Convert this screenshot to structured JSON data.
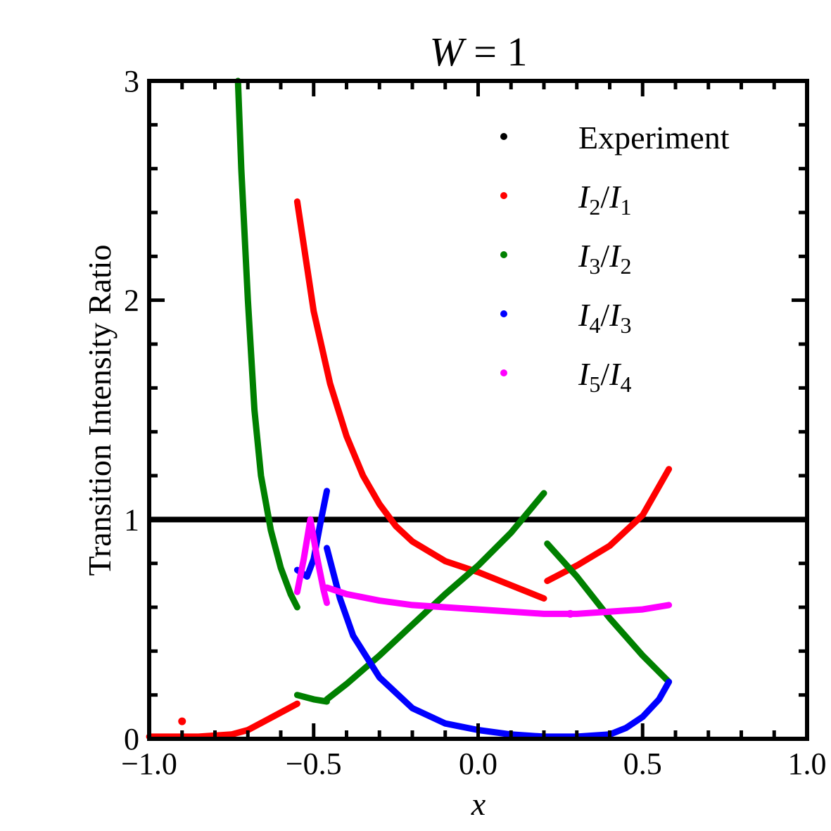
{
  "chart_data": {
    "type": "scatter",
    "title": "W = 1",
    "title_parts": {
      "symbol": "W",
      "rest": " = 1"
    },
    "xlabel": "x",
    "ylabel": "Transition Intensity Ratio",
    "xlim": [
      -1.0,
      1.0
    ],
    "ylim": [
      0,
      3
    ],
    "xticks": [
      -1.0,
      -0.5,
      0.0,
      0.5,
      1.0
    ],
    "xtick_labels": [
      "−1.0",
      "−0.5",
      "0.0",
      "0.5",
      "1.0"
    ],
    "yticks": [
      0,
      1,
      2,
      3
    ],
    "ytick_labels": [
      "0",
      "1",
      "2",
      "3"
    ],
    "grid": false,
    "legend_position": "top-right",
    "reference_line": {
      "y": 1.0,
      "color": "#000000"
    },
    "series": [
      {
        "name": "Experiment",
        "legend": {
          "main": "Experiment"
        },
        "color": "#000000",
        "segments": []
      },
      {
        "name": "I2/I1",
        "legend": {
          "a": "I",
          "a_sub": "2",
          "b": "I",
          "b_sub": "1"
        },
        "color": "#ff0000",
        "isolated_points": [
          [
            -0.9,
            0.08
          ]
        ],
        "segments": [
          [
            [
              -1.0,
              0.01
            ],
            [
              -0.85,
              0.01
            ],
            [
              -0.75,
              0.02
            ],
            [
              -0.7,
              0.04
            ],
            [
              -0.65,
              0.08
            ],
            [
              -0.6,
              0.12
            ],
            [
              -0.55,
              0.16
            ]
          ],
          [
            [
              -0.55,
              2.45
            ],
            [
              -0.5,
              1.95
            ],
            [
              -0.45,
              1.62
            ],
            [
              -0.4,
              1.38
            ],
            [
              -0.35,
              1.2
            ],
            [
              -0.3,
              1.07
            ],
            [
              -0.25,
              0.97
            ],
            [
              -0.2,
              0.9
            ],
            [
              -0.1,
              0.81
            ],
            [
              0.0,
              0.76
            ],
            [
              0.1,
              0.7
            ],
            [
              0.2,
              0.64
            ]
          ],
          [
            [
              0.21,
              0.72
            ],
            [
              0.3,
              0.79
            ],
            [
              0.4,
              0.88
            ],
            [
              0.5,
              1.02
            ],
            [
              0.58,
              1.23
            ]
          ]
        ]
      },
      {
        "name": "I3/I2",
        "legend": {
          "a": "I",
          "a_sub": "3",
          "b": "I",
          "b_sub": "2"
        },
        "color": "#008000",
        "segments": [
          [
            [
              -0.73,
              3.0
            ],
            [
              -0.72,
              2.6
            ],
            [
              -0.7,
              2.0
            ],
            [
              -0.68,
              1.5
            ],
            [
              -0.66,
              1.2
            ],
            [
              -0.63,
              0.95
            ],
            [
              -0.6,
              0.78
            ],
            [
              -0.57,
              0.66
            ],
            [
              -0.55,
              0.6
            ]
          ],
          [
            [
              -0.55,
              0.2
            ],
            [
              -0.5,
              0.18
            ],
            [
              -0.46,
              0.17
            ]
          ],
          [
            [
              -0.46,
              0.18
            ],
            [
              -0.4,
              0.25
            ],
            [
              -0.3,
              0.38
            ],
            [
              -0.2,
              0.52
            ],
            [
              -0.1,
              0.66
            ],
            [
              0.0,
              0.79
            ],
            [
              0.1,
              0.94
            ],
            [
              0.2,
              1.12
            ]
          ],
          [
            [
              0.21,
              0.89
            ],
            [
              0.3,
              0.74
            ],
            [
              0.4,
              0.55
            ],
            [
              0.5,
              0.38
            ],
            [
              0.58,
              0.26
            ]
          ]
        ]
      },
      {
        "name": "I4/I3",
        "legend": {
          "a": "I",
          "a_sub": "4",
          "b": "I",
          "b_sub": "3"
        },
        "color": "#0000ff",
        "segments": [
          [
            [
              -0.55,
              0.77
            ],
            [
              -0.52,
              0.74
            ],
            [
              -0.5,
              0.82
            ],
            [
              -0.48,
              0.98
            ],
            [
              -0.46,
              1.13
            ]
          ],
          [
            [
              -0.46,
              0.87
            ],
            [
              -0.42,
              0.64
            ],
            [
              -0.38,
              0.47
            ],
            [
              -0.3,
              0.28
            ],
            [
              -0.2,
              0.14
            ],
            [
              -0.1,
              0.07
            ],
            [
              0.0,
              0.04
            ],
            [
              0.1,
              0.02
            ],
            [
              0.2,
              0.01
            ],
            [
              0.3,
              0.01
            ],
            [
              0.4,
              0.02
            ],
            [
              0.45,
              0.05
            ],
            [
              0.5,
              0.1
            ],
            [
              0.55,
              0.18
            ],
            [
              0.58,
              0.26
            ]
          ]
        ]
      },
      {
        "name": "I5/I4",
        "legend": {
          "a": "I",
          "a_sub": "5",
          "b": "I",
          "b_sub": "4"
        },
        "color": "#ff00ff",
        "isolated_points": [
          [
            0.28,
            0.57
          ]
        ],
        "segments": [
          [
            [
              -0.55,
              0.67
            ],
            [
              -0.53,
              0.82
            ],
            [
              -0.51,
              1.0
            ],
            [
              -0.49,
              0.83
            ],
            [
              -0.47,
              0.68
            ],
            [
              -0.46,
              0.62
            ]
          ],
          [
            [
              -0.46,
              0.69
            ],
            [
              -0.4,
              0.66
            ],
            [
              -0.3,
              0.63
            ],
            [
              -0.2,
              0.61
            ],
            [
              -0.1,
              0.6
            ],
            [
              0.0,
              0.59
            ],
            [
              0.1,
              0.58
            ],
            [
              0.2,
              0.57
            ],
            [
              0.3,
              0.57
            ],
            [
              0.4,
              0.58
            ],
            [
              0.5,
              0.59
            ],
            [
              0.58,
              0.61
            ]
          ]
        ]
      }
    ]
  }
}
